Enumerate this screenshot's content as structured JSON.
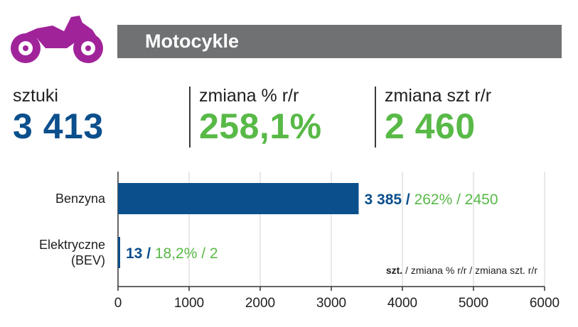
{
  "header": {
    "title": "Motocykle",
    "icon": "motorcycle-icon",
    "icon_color": "#a0239a",
    "bar_color": "#6f7173"
  },
  "stats": [
    {
      "label": "sztuki",
      "value": "3 413",
      "color": "#0b4f8c"
    },
    {
      "label": "zmiana % r/r",
      "value": "258,1%",
      "color": "#58b947"
    },
    {
      "label": "zmiana szt r/r",
      "value": "2 460",
      "color": "#58b947"
    }
  ],
  "colors": {
    "blue": "#0b4f8c",
    "green": "#58b947",
    "grid": "#d0d0d0",
    "axis": "#333333"
  },
  "chart_data": {
    "type": "bar",
    "orientation": "horizontal",
    "categories": [
      "Benzyna",
      "Elektryczne (BEV)"
    ],
    "category_lines": [
      [
        "Benzyna"
      ],
      [
        "Elektryczne",
        "(BEV)"
      ]
    ],
    "values": [
      3385,
      13
    ],
    "labels": [
      {
        "value": "3 385 /",
        "rest": " 262% / 2450"
      },
      {
        "value": "13 /",
        "rest": " 18,2% / 2"
      }
    ],
    "xlim": [
      0,
      6000
    ],
    "xticks": [
      0,
      1000,
      2000,
      3000,
      4000,
      5000,
      6000
    ],
    "grid": true,
    "legend_note": {
      "bold": "szt.",
      "rest": " / zmiana % r/r / zmiana szt. r/r"
    }
  }
}
